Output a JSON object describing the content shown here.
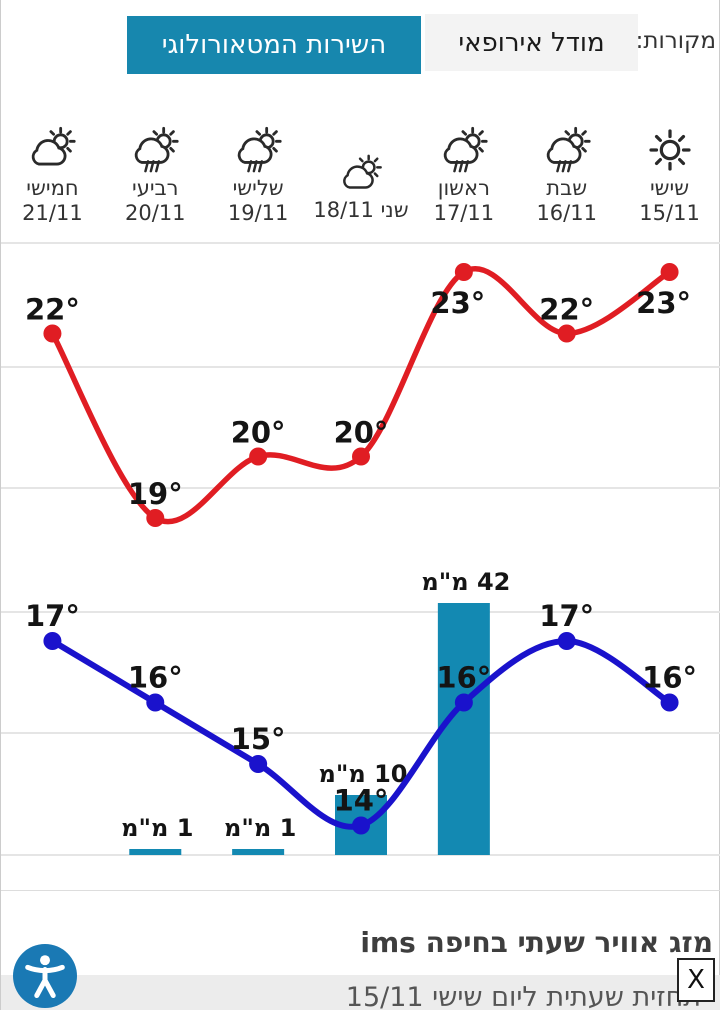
{
  "sources": {
    "label": "מקורות:",
    "tabs": [
      {
        "id": "european-model",
        "label": "מודל אירופאי",
        "selected": false
      },
      {
        "id": "meteorological-service",
        "label": "השירות המטאורולוגי",
        "selected": true
      }
    ]
  },
  "days": [
    {
      "key": "friday",
      "name": "שישי",
      "date": "15/11",
      "icon": "sun",
      "compact": false
    },
    {
      "key": "saturday",
      "name": "שבת",
      "date": "16/11",
      "icon": "rain-sun",
      "compact": false
    },
    {
      "key": "sunday",
      "name": "ראשון",
      "date": "17/11",
      "icon": "rain-sun",
      "compact": false
    },
    {
      "key": "monday",
      "name": "שני",
      "date": "18/11",
      "icon": "partly-cloudy",
      "compact": true
    },
    {
      "key": "tuesday",
      "name": "שלישי",
      "date": "19/11",
      "icon": "rain-sun",
      "compact": false
    },
    {
      "key": "wednesday",
      "name": "רביעי",
      "date": "20/11",
      "icon": "rain-sun",
      "compact": false
    },
    {
      "key": "thursday",
      "name": "חמישי",
      "date": "21/11",
      "icon": "partly-cloudy",
      "compact": false
    }
  ],
  "chart_data": {
    "type": "line+bar",
    "categories": [
      "שישי 15/11",
      "שבת 16/11",
      "ראשון 17/11",
      "שני 18/11",
      "שלישי 19/11",
      "רביעי 20/11",
      "חמישי 21/11"
    ],
    "series": [
      {
        "name": "high_temp_c",
        "type": "line",
        "color": "#e01d23",
        "unit": "°",
        "values": [
          23,
          22,
          23,
          20,
          20,
          19,
          22
        ]
      },
      {
        "name": "low_temp_c",
        "type": "line",
        "color": "#1a12cc",
        "unit": "°",
        "values": [
          16,
          17,
          16,
          14,
          15,
          16,
          17
        ]
      },
      {
        "name": "precipitation_mm",
        "type": "bar",
        "color": "#1389b2",
        "unit": "מ\"מ",
        "values": [
          0,
          0,
          42,
          10,
          1,
          1,
          0
        ]
      }
    ],
    "ylim_temp": [
      13,
      24
    ],
    "precip_max": 42,
    "grid": true,
    "legend": "none"
  },
  "footer": {
    "title": "מזג אוויר שעתי בחיפה ims",
    "subtitle": "תחזית שעתית ליום שישי 15/11",
    "close_label": "X"
  },
  "colors": {
    "accent_teal": "#1787ae",
    "high_line": "#e01d23",
    "low_line": "#1a12cc",
    "band_bg": "#ececec"
  }
}
